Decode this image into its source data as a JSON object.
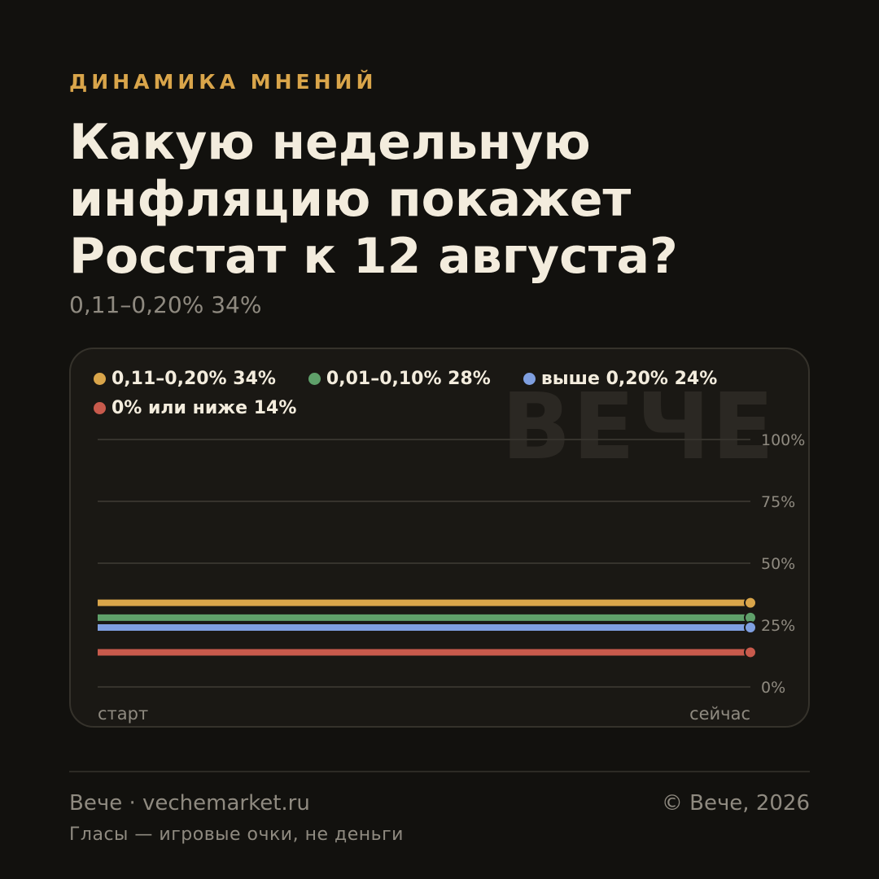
{
  "header": {
    "kicker": "ДИНАМИКА МНЕНИЙ",
    "title": "Какую недельную инфляцию покажет Росстат к 12 августа?",
    "subtitle": "0,11–0,20% 34%"
  },
  "watermark": "ВЕЧЕ",
  "colors": {
    "background": "#12110e",
    "gold": "#d9a54a",
    "green": "#5fa06a",
    "blue": "#7f9fe0",
    "red": "#c85a4c"
  },
  "chart_data": {
    "type": "line",
    "x": [
      "старт",
      "сейчас"
    ],
    "ylim": [
      0,
      100
    ],
    "yticks": [
      0,
      25,
      50,
      75,
      100
    ],
    "ytick_labels": [
      "0%",
      "25%",
      "50%",
      "75%",
      "100%"
    ],
    "grid": true,
    "legend_placement": "top-left",
    "series": [
      {
        "name": "0,11–0,20% 34%",
        "values": [
          34,
          34
        ],
        "color": "#d9a54a"
      },
      {
        "name": "0,01–0,10% 28%",
        "values": [
          28,
          28
        ],
        "color": "#5fa06a"
      },
      {
        "name": "выше 0,20% 24%",
        "values": [
          24,
          24
        ],
        "color": "#7f9fe0"
      },
      {
        "name": "0% или ниже 14%",
        "values": [
          14,
          14
        ],
        "color": "#c85a4c"
      }
    ]
  },
  "footer": {
    "brand": "Вече · vechemarket.ru",
    "copyright": "© Вече, 2026",
    "note": "Гласы — игровые очки, не деньги"
  }
}
